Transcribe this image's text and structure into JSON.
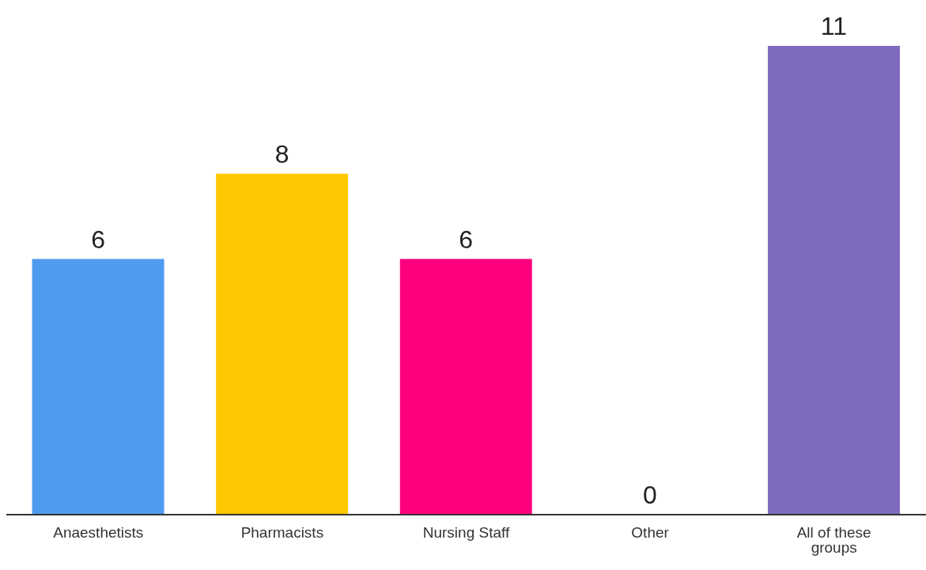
{
  "chart_data": {
    "type": "bar",
    "categories": [
      "Anaesthetists",
      "Pharmacists",
      "Nursing Staff",
      "Other",
      "All of these groups"
    ],
    "values": [
      6,
      8,
      6,
      0,
      11
    ],
    "colors": [
      "#4f9bef",
      "#fdc800",
      "#fe007e",
      "#9e9e9e",
      "#7f6bbd"
    ],
    "data_labels": true,
    "grid": false,
    "legend": false
  }
}
